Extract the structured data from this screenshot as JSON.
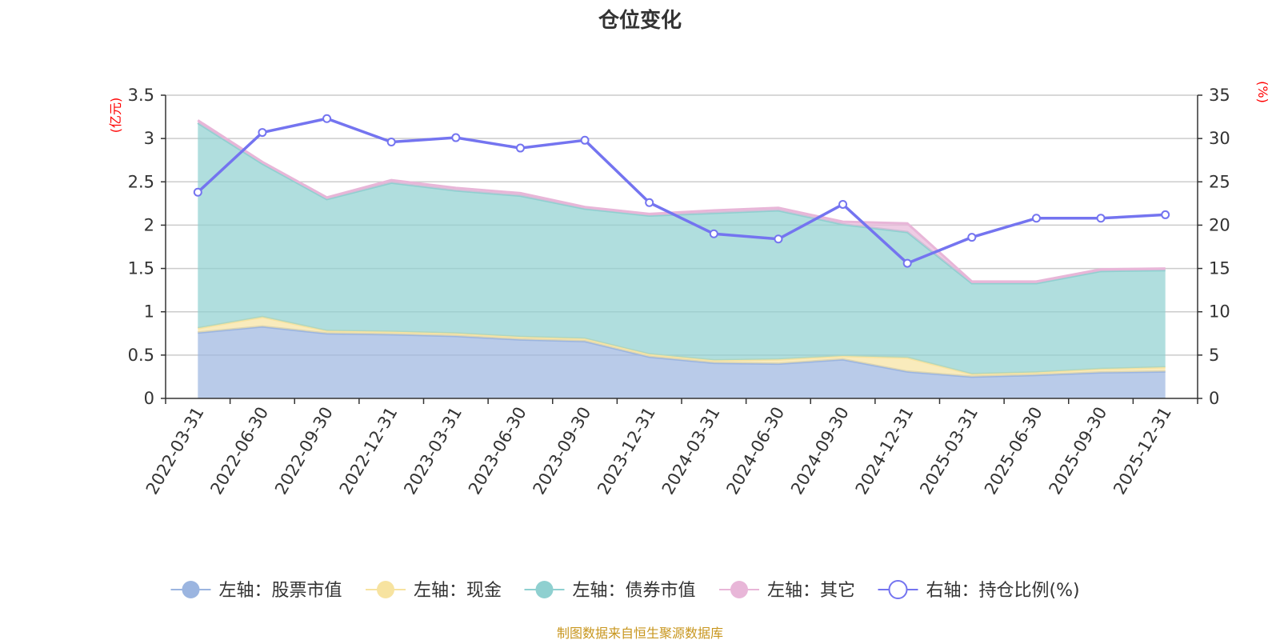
{
  "chart_data": {
    "type": "area",
    "title": "仓位变化",
    "left_axis_unit": "(亿元)",
    "right_axis_unit": "(%)",
    "categories": [
      "2022-03-31",
      "2022-06-30",
      "2022-09-30",
      "2022-12-31",
      "2023-03-31",
      "2023-06-30",
      "2023-09-30",
      "2023-12-31",
      "2024-03-31",
      "2024-06-30",
      "2024-09-30",
      "2024-12-31",
      "2025-03-31",
      "2025-06-30",
      "2025-09-30",
      "2025-12-31"
    ],
    "left_ylim": [
      0,
      3.5
    ],
    "left_ticks": [
      "0",
      "0.5",
      "1",
      "1.5",
      "2",
      "2.5",
      "3",
      "3.5"
    ],
    "right_ylim": [
      0,
      35
    ],
    "right_ticks": [
      "0",
      "5",
      "10",
      "15",
      "20",
      "25",
      "30",
      "35"
    ],
    "stacked_series": [
      {
        "name": "左轴：股票市值",
        "color": "#9bb5e0",
        "values": [
          0.76,
          0.83,
          0.75,
          0.74,
          0.72,
          0.68,
          0.66,
          0.48,
          0.41,
          0.4,
          0.45,
          0.31,
          0.25,
          0.27,
          0.3,
          0.31
        ]
      },
      {
        "name": "左轴：现金",
        "color": "#f7e3a0",
        "values": [
          0.05,
          0.11,
          0.03,
          0.03,
          0.03,
          0.03,
          0.03,
          0.03,
          0.03,
          0.05,
          0.04,
          0.16,
          0.03,
          0.03,
          0.04,
          0.05
        ]
      },
      {
        "name": "左轴：债券市值",
        "color": "#8fd0d0",
        "values": [
          2.37,
          1.77,
          1.52,
          1.72,
          1.65,
          1.63,
          1.5,
          1.6,
          1.7,
          1.72,
          1.52,
          1.45,
          1.05,
          1.03,
          1.13,
          1.12
        ]
      },
      {
        "name": "左轴：其它",
        "color": "#e8b6d8",
        "values": [
          0.03,
          0.02,
          0.02,
          0.03,
          0.03,
          0.03,
          0.02,
          0.02,
          0.03,
          0.03,
          0.03,
          0.1,
          0.02,
          0.02,
          0.02,
          0.02
        ]
      }
    ],
    "line_series": {
      "name": "右轴：持仓比例(%)",
      "color": "#7474f0",
      "values": [
        23.8,
        30.7,
        32.3,
        29.6,
        30.1,
        28.9,
        29.8,
        22.6,
        19.0,
        18.4,
        22.4,
        15.6,
        18.6,
        20.8,
        20.8,
        21.2
      ]
    },
    "source": "制图数据来自恒生聚源数据库"
  }
}
